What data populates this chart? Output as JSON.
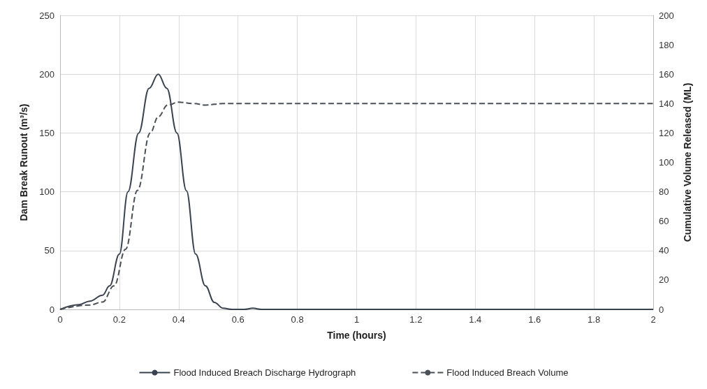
{
  "chart_data": {
    "type": "line",
    "xlabel": "Time (hours)",
    "ylabel": "Dam Break Runout (m³/s)",
    "y2label": "Cumulative Volume Released (ML)",
    "xlim": [
      0,
      2
    ],
    "xticks": [
      0,
      0.2,
      0.4,
      0.6,
      0.8,
      1,
      1.2,
      1.4,
      1.6,
      1.8,
      2
    ],
    "ylim": [
      0,
      250
    ],
    "yticks": [
      0,
      50,
      100,
      150,
      200,
      250
    ],
    "y2lim": [
      0,
      200
    ],
    "y2ticks": [
      0,
      20,
      40,
      60,
      80,
      100,
      120,
      140,
      160,
      180,
      200
    ],
    "grid": true,
    "legend": "bottom",
    "marker": "none",
    "series": [
      {
        "name": "Flood Induced Breach Discharge Hydrograph",
        "color": "#3a4250",
        "line_style": "solid",
        "x": [
          0,
          0.064,
          0.1,
          0.143,
          0.167,
          0.2,
          0.229,
          0.265,
          0.3,
          0.331,
          0.36,
          0.394,
          0.426,
          0.457,
          0.49,
          0.52,
          0.55,
          0.58,
          0.62,
          0.65,
          0.68,
          0.75,
          1,
          1.5,
          2
        ],
        "values": [
          0,
          4,
          7,
          12,
          20,
          47,
          100,
          150,
          188,
          200,
          188,
          150,
          101,
          47,
          20,
          6,
          1,
          0,
          0,
          1,
          0,
          0,
          0,
          0,
          0
        ]
      },
      {
        "name": "Flood Induced Breach Volume",
        "color": "#4a4f58",
        "line_style": "dashed",
        "axis": "y2",
        "x": [
          0,
          0.1,
          0.143,
          0.182,
          0.221,
          0.261,
          0.304,
          0.331,
          0.363,
          0.4,
          0.45,
          0.49,
          0.55,
          1,
          1.5,
          2
        ],
        "values": [
          0,
          3,
          5,
          16,
          41,
          81,
          120,
          131,
          139,
          141,
          140,
          139,
          140,
          140,
          140,
          140
        ]
      }
    ]
  }
}
